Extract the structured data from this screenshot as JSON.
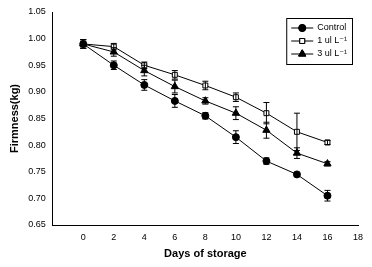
{
  "chart_data": {
    "type": "line",
    "x_label": "Days of storage",
    "y_label": "Firmness(kg)",
    "xlim": [
      -2,
      18
    ],
    "xticks": [
      0,
      2,
      4,
      6,
      8,
      10,
      12,
      14,
      16,
      18
    ],
    "ylim": [
      0.65,
      1.05
    ],
    "yticks": [
      0.65,
      {
        "value": 0.7,
        "label": "0.70"
      },
      0.75,
      {
        "value": 0.8,
        "label": "0.80"
      },
      0.85,
      {
        "value": 0.9,
        "label": "0.90"
      },
      0.95,
      {
        "value": 1.0,
        "label": "1.00"
      },
      1.05
    ],
    "grid": false,
    "legend": "upper right",
    "x": [
      0,
      2,
      4,
      6,
      8,
      10,
      12,
      14,
      16
    ],
    "series": [
      {
        "name": "Control",
        "color": "#000000",
        "marker": "circle",
        "values": [
          0.99,
          0.95,
          0.913,
          0.883,
          0.855,
          0.815,
          0.77,
          0.745,
          0.705
        ],
        "errors": [
          0.008,
          0.008,
          0.01,
          0.012,
          0.006,
          0.012,
          0.006,
          0.004,
          0.01
        ]
      },
      {
        "name": "1 ul L⁻¹",
        "color": "#000000",
        "marker": "open_square",
        "values": [
          0.99,
          0.985,
          0.95,
          0.932,
          0.912,
          0.89,
          0.86,
          0.825,
          0.805
        ],
        "errors": [
          0.008,
          0.006,
          0.006,
          0.008,
          0.008,
          0.008,
          0.02,
          0.035,
          0.004
        ]
      },
      {
        "name": "3 ul L⁻¹",
        "color": "#000000",
        "marker": "triangle",
        "values": [
          0.99,
          0.975,
          0.94,
          0.91,
          0.883,
          0.86,
          0.828,
          0.785,
          0.765
        ],
        "errors": [
          0.008,
          0.008,
          0.01,
          0.012,
          0.006,
          0.012,
          0.015,
          0.01,
          0.004
        ]
      }
    ]
  }
}
